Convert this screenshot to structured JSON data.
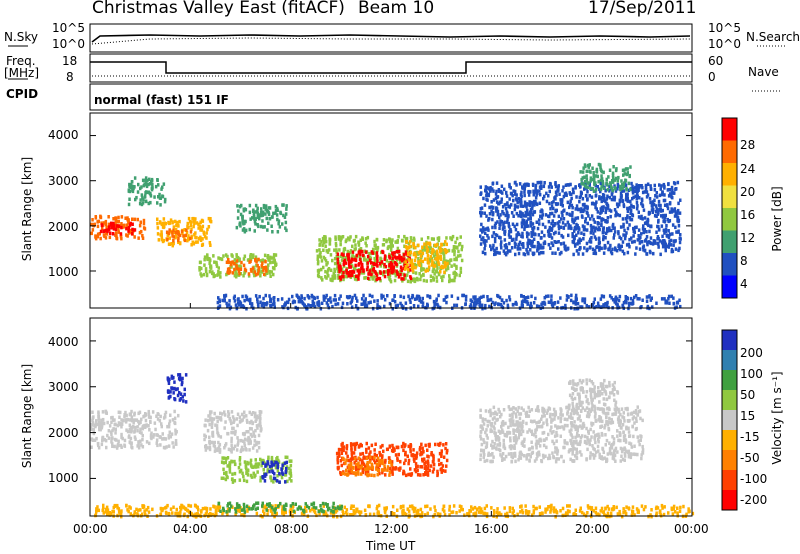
{
  "header": {
    "station": "Christmas Valley East (fitACF)",
    "beam": "Beam 10",
    "date": "17/Sep/2011"
  },
  "top_panels": {
    "nsky_label": "N.Sky",
    "nsky_ticks": [
      "10^5",
      "10^0"
    ],
    "nsearch_label": "N.Search",
    "nsearch_ticks": [
      "10^5",
      "10^0"
    ],
    "freq_label": "Freq.",
    "freq_unit": "[MHz]",
    "freq_ticks": [
      "18",
      "8"
    ],
    "nave_label": "Nave",
    "nave_ticks": [
      "60",
      "0"
    ],
    "cpid_label": "CPID",
    "cpid_value": "normal (fast) 151 IF"
  },
  "chart_data": [
    {
      "type": "heatmap",
      "name": "power",
      "ylabel": "Slant Range [km]",
      "yticks": [
        "4000",
        "3000",
        "2000",
        "1000"
      ],
      "ylim": [
        180,
        4500
      ],
      "xlim": [
        0,
        24
      ],
      "colorbar": {
        "label": "Power [dB]",
        "ticks": [
          "28",
          "24",
          "20",
          "16",
          "12",
          "8",
          "4"
        ],
        "colors": [
          "#ff0000",
          "#ff6a00",
          "#ffb000",
          "#f0e040",
          "#90c840",
          "#40a070",
          "#2050c0",
          "#0000ff"
        ]
      },
      "regions": [
        {
          "t0": 0.0,
          "t1": 2.2,
          "r0": 1750,
          "r1": 2250,
          "c": "#ff6a00"
        },
        {
          "t0": 0.3,
          "t1": 1.8,
          "r0": 1850,
          "r1": 2100,
          "c": "#ff0000"
        },
        {
          "t0": 1.5,
          "t1": 3.0,
          "r0": 2500,
          "r1": 3100,
          "c": "#40a070"
        },
        {
          "t0": 2.6,
          "t1": 4.8,
          "r0": 1600,
          "r1": 2200,
          "c": "#ffb000"
        },
        {
          "t0": 3.0,
          "t1": 4.0,
          "r0": 1700,
          "r1": 1950,
          "c": "#ff6a00"
        },
        {
          "t0": 4.3,
          "t1": 7.4,
          "r0": 900,
          "r1": 1400,
          "c": "#90c840"
        },
        {
          "t0": 5.4,
          "t1": 7.0,
          "r0": 950,
          "r1": 1300,
          "c": "#ff6a00"
        },
        {
          "t0": 5.8,
          "t1": 7.8,
          "r0": 1900,
          "r1": 2500,
          "c": "#40a070"
        },
        {
          "t0": 9.0,
          "t1": 14.8,
          "r0": 800,
          "r1": 1800,
          "c": "#90c840"
        },
        {
          "t0": 9.8,
          "t1": 12.8,
          "r0": 850,
          "r1": 1500,
          "c": "#ff0000"
        },
        {
          "t0": 12.5,
          "t1": 14.2,
          "r0": 1000,
          "r1": 1700,
          "c": "#ffb000"
        },
        {
          "t0": 5.0,
          "t1": 23.5,
          "r0": 200,
          "r1": 500,
          "c": "#2050c0"
        },
        {
          "t0": 15.5,
          "t1": 23.5,
          "r0": 1400,
          "r1": 3000,
          "c": "#2050c0"
        },
        {
          "t0": 19.5,
          "t1": 21.5,
          "r0": 2800,
          "r1": 3400,
          "c": "#40a070"
        }
      ]
    },
    {
      "type": "heatmap",
      "name": "velocity",
      "ylabel": "Slant Range [km]",
      "yticks": [
        "4000",
        "3000",
        "2000",
        "1000"
      ],
      "ylim": [
        180,
        4500
      ],
      "xlim": [
        0,
        24
      ],
      "xlabel": "Time UT",
      "xticks": [
        "00:00",
        "04:00",
        "08:00",
        "12:00",
        "16:00",
        "20:00",
        "00:00"
      ],
      "colorbar": {
        "label": "Velocity [m s⁻¹]",
        "ticks": [
          "200",
          "100",
          "50",
          "15",
          "-15",
          "-50",
          "-100",
          "-200"
        ],
        "colors": [
          "#2030c0",
          "#3080b0",
          "#40a040",
          "#90c840",
          "#c8c8c8",
          "#ffb000",
          "#ff8000",
          "#ff4000",
          "#ff0000"
        ]
      },
      "regions": [
        {
          "t0": 0.0,
          "t1": 3.5,
          "r0": 1700,
          "r1": 2500,
          "c": "#c8c8c8"
        },
        {
          "t0": 3.0,
          "t1": 3.8,
          "r0": 2700,
          "r1": 3300,
          "c": "#2030c0"
        },
        {
          "t0": 4.5,
          "t1": 6.8,
          "r0": 1600,
          "r1": 2500,
          "c": "#c8c8c8"
        },
        {
          "t0": 5.2,
          "t1": 8.0,
          "r0": 950,
          "r1": 1500,
          "c": "#90c840"
        },
        {
          "t0": 6.8,
          "t1": 7.8,
          "r0": 950,
          "r1": 1400,
          "c": "#2030c0"
        },
        {
          "t0": 9.8,
          "t1": 14.2,
          "r0": 1100,
          "r1": 1800,
          "c": "#ff4000"
        },
        {
          "t0": 10.0,
          "t1": 12.0,
          "r0": 1100,
          "r1": 1500,
          "c": "#ff8000"
        },
        {
          "t0": 0.0,
          "t1": 24.0,
          "r0": 200,
          "r1": 450,
          "c": "#ffb000"
        },
        {
          "t0": 5.0,
          "t1": 10.0,
          "r0": 300,
          "r1": 500,
          "c": "#40a040"
        },
        {
          "t0": 15.5,
          "t1": 22.0,
          "r0": 1400,
          "r1": 2600,
          "c": "#c8c8c8"
        },
        {
          "t0": 19.0,
          "t1": 21.0,
          "r0": 2500,
          "r1": 3200,
          "c": "#c8c8c8"
        }
      ]
    }
  ]
}
